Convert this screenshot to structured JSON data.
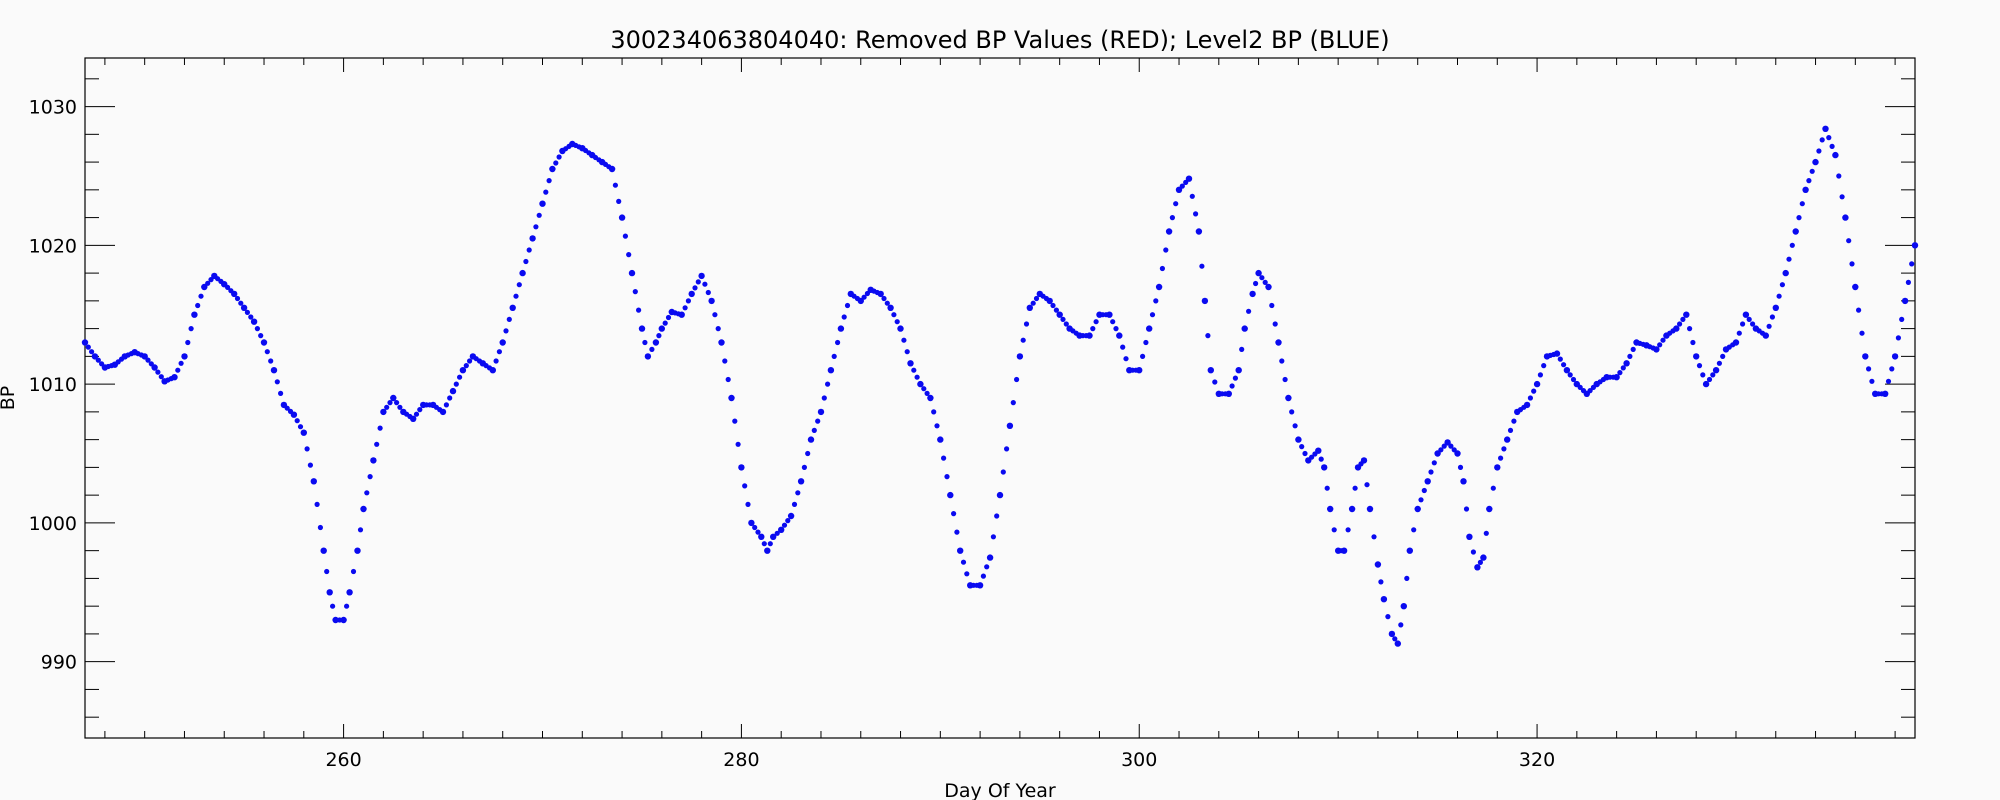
{
  "chart_data": {
    "type": "scatter",
    "title": "300234063804040: Removed BP Values (RED); Level2 BP (BLUE)",
    "xlabel": "Day Of Year",
    "ylabel": "BP",
    "xlim": [
      247,
      339
    ],
    "ylim": [
      984.5,
      1033.5
    ],
    "x_ticks": [
      260,
      280,
      300,
      320
    ],
    "y_ticks": [
      990,
      1000,
      1010,
      1020,
      1030
    ],
    "grid": false,
    "legend": "none",
    "series": [
      {
        "color": "#0a0af0",
        "points": [
          [
            247.0,
            1013.0
          ],
          [
            247.5,
            1012.0
          ],
          [
            248.0,
            1011.2
          ],
          [
            248.5,
            1011.4
          ],
          [
            249.0,
            1012.0
          ],
          [
            249.5,
            1012.3
          ],
          [
            250.0,
            1012.0
          ],
          [
            250.5,
            1011.2
          ],
          [
            251.0,
            1010.2
          ],
          [
            251.5,
            1010.5
          ],
          [
            252.0,
            1012.0
          ],
          [
            252.5,
            1015.0
          ],
          [
            253.0,
            1017.0
          ],
          [
            253.5,
            1017.8
          ],
          [
            254.0,
            1017.2
          ],
          [
            254.5,
            1016.5
          ],
          [
            255.0,
            1015.5
          ],
          [
            255.5,
            1014.5
          ],
          [
            256.0,
            1013.0
          ],
          [
            256.5,
            1011.0
          ],
          [
            257.0,
            1008.5
          ],
          [
            257.5,
            1007.8
          ],
          [
            258.0,
            1006.5
          ],
          [
            258.5,
            1003.0
          ],
          [
            259.0,
            998.0
          ],
          [
            259.3,
            995.0
          ],
          [
            259.6,
            993.0
          ],
          [
            260.0,
            993.0
          ],
          [
            260.3,
            995.0
          ],
          [
            260.7,
            998.0
          ],
          [
            261.0,
            1001.0
          ],
          [
            261.5,
            1004.5
          ],
          [
            262.0,
            1008.0
          ],
          [
            262.5,
            1009.0
          ],
          [
            263.0,
            1008.0
          ],
          [
            263.5,
            1007.5
          ],
          [
            264.0,
            1008.5
          ],
          [
            264.5,
            1008.5
          ],
          [
            265.0,
            1008.0
          ],
          [
            265.5,
            1009.5
          ],
          [
            266.0,
            1011.0
          ],
          [
            266.5,
            1012.0
          ],
          [
            267.0,
            1011.5
          ],
          [
            267.5,
            1011.0
          ],
          [
            268.0,
            1013.0
          ],
          [
            268.5,
            1015.5
          ],
          [
            269.0,
            1018.0
          ],
          [
            269.5,
            1020.5
          ],
          [
            270.0,
            1023.0
          ],
          [
            270.5,
            1025.5
          ],
          [
            271.0,
            1026.8
          ],
          [
            271.5,
            1027.3
          ],
          [
            272.0,
            1027.0
          ],
          [
            272.5,
            1026.5
          ],
          [
            273.0,
            1026.0
          ],
          [
            273.5,
            1025.5
          ],
          [
            274.0,
            1022.0
          ],
          [
            274.5,
            1018.0
          ],
          [
            275.0,
            1014.0
          ],
          [
            275.3,
            1012.0
          ],
          [
            275.7,
            1013.0
          ],
          [
            276.0,
            1014.0
          ],
          [
            276.5,
            1015.2
          ],
          [
            277.0,
            1015.0
          ],
          [
            277.5,
            1016.5
          ],
          [
            278.0,
            1017.8
          ],
          [
            278.5,
            1016.0
          ],
          [
            279.0,
            1013.0
          ],
          [
            279.5,
            1009.0
          ],
          [
            280.0,
            1004.0
          ],
          [
            280.5,
            1000.0
          ],
          [
            281.0,
            999.0
          ],
          [
            281.3,
            998.0
          ],
          [
            281.6,
            999.0
          ],
          [
            282.0,
            999.5
          ],
          [
            282.5,
            1000.5
          ],
          [
            283.0,
            1003.0
          ],
          [
            283.5,
            1006.0
          ],
          [
            284.0,
            1008.0
          ],
          [
            284.5,
            1011.0
          ],
          [
            285.0,
            1014.0
          ],
          [
            285.5,
            1016.5
          ],
          [
            286.0,
            1016.0
          ],
          [
            286.5,
            1016.8
          ],
          [
            287.0,
            1016.5
          ],
          [
            287.5,
            1015.5
          ],
          [
            288.0,
            1014.0
          ],
          [
            288.5,
            1011.5
          ],
          [
            289.0,
            1010.0
          ],
          [
            289.5,
            1009.0
          ],
          [
            290.0,
            1006.0
          ],
          [
            290.5,
            1002.0
          ],
          [
            291.0,
            998.0
          ],
          [
            291.5,
            995.5
          ],
          [
            292.0,
            995.5
          ],
          [
            292.5,
            997.5
          ],
          [
            293.0,
            1002.0
          ],
          [
            293.5,
            1007.0
          ],
          [
            294.0,
            1012.0
          ],
          [
            294.5,
            1015.5
          ],
          [
            295.0,
            1016.5
          ],
          [
            295.5,
            1016.0
          ],
          [
            296.0,
            1015.0
          ],
          [
            296.5,
            1014.0
          ],
          [
            297.0,
            1013.5
          ],
          [
            297.5,
            1013.5
          ],
          [
            298.0,
            1015.0
          ],
          [
            298.5,
            1015.0
          ],
          [
            299.0,
            1013.5
          ],
          [
            299.5,
            1011.0
          ],
          [
            300.0,
            1011.0
          ],
          [
            300.5,
            1014.0
          ],
          [
            301.0,
            1017.0
          ],
          [
            301.5,
            1021.0
          ],
          [
            302.0,
            1024.0
          ],
          [
            302.5,
            1024.8
          ],
          [
            303.0,
            1021.0
          ],
          [
            303.3,
            1016.0
          ],
          [
            303.6,
            1011.0
          ],
          [
            304.0,
            1009.3
          ],
          [
            304.5,
            1009.3
          ],
          [
            305.0,
            1011.0
          ],
          [
            305.3,
            1014.0
          ],
          [
            305.7,
            1016.5
          ],
          [
            306.0,
            1018.0
          ],
          [
            306.5,
            1017.0
          ],
          [
            307.0,
            1013.0
          ],
          [
            307.5,
            1009.0
          ],
          [
            308.0,
            1006.0
          ],
          [
            308.5,
            1004.5
          ],
          [
            309.0,
            1005.2
          ],
          [
            309.3,
            1004.0
          ],
          [
            309.6,
            1001.0
          ],
          [
            310.0,
            998.0
          ],
          [
            310.3,
            998.0
          ],
          [
            310.7,
            1001.0
          ],
          [
            311.0,
            1004.0
          ],
          [
            311.3,
            1004.5
          ],
          [
            311.6,
            1001.0
          ],
          [
            312.0,
            997.0
          ],
          [
            312.3,
            994.5
          ],
          [
            312.7,
            992.0
          ],
          [
            313.0,
            991.3
          ],
          [
            313.3,
            994.0
          ],
          [
            313.6,
            998.0
          ],
          [
            314.0,
            1001.0
          ],
          [
            314.5,
            1003.0
          ],
          [
            315.0,
            1005.0
          ],
          [
            315.5,
            1005.8
          ],
          [
            316.0,
            1005.0
          ],
          [
            316.3,
            1003.0
          ],
          [
            316.6,
            999.0
          ],
          [
            317.0,
            996.8
          ],
          [
            317.3,
            997.5
          ],
          [
            317.6,
            1001.0
          ],
          [
            318.0,
            1004.0
          ],
          [
            318.5,
            1006.0
          ],
          [
            319.0,
            1008.0
          ],
          [
            319.5,
            1008.5
          ],
          [
            320.0,
            1010.0
          ],
          [
            320.5,
            1012.0
          ],
          [
            321.0,
            1012.2
          ],
          [
            321.5,
            1011.0
          ],
          [
            322.0,
            1010.0
          ],
          [
            322.5,
            1009.3
          ],
          [
            323.0,
            1010.0
          ],
          [
            323.5,
            1010.5
          ],
          [
            324.0,
            1010.5
          ],
          [
            324.5,
            1011.5
          ],
          [
            325.0,
            1013.0
          ],
          [
            325.5,
            1012.8
          ],
          [
            326.0,
            1012.5
          ],
          [
            326.5,
            1013.5
          ],
          [
            327.0,
            1014.0
          ],
          [
            327.5,
            1015.0
          ],
          [
            328.0,
            1012.0
          ],
          [
            328.5,
            1010.0
          ],
          [
            329.0,
            1011.0
          ],
          [
            329.5,
            1012.5
          ],
          [
            330.0,
            1013.0
          ],
          [
            330.5,
            1015.0
          ],
          [
            331.0,
            1014.0
          ],
          [
            331.5,
            1013.5
          ],
          [
            332.0,
            1015.5
          ],
          [
            332.5,
            1018.0
          ],
          [
            333.0,
            1021.0
          ],
          [
            333.5,
            1024.0
          ],
          [
            334.0,
            1026.0
          ],
          [
            334.5,
            1028.4
          ],
          [
            335.0,
            1026.5
          ],
          [
            335.5,
            1022.0
          ],
          [
            336.0,
            1017.0
          ],
          [
            336.5,
            1012.0
          ],
          [
            337.0,
            1009.3
          ],
          [
            337.5,
            1009.3
          ],
          [
            338.0,
            1012.0
          ],
          [
            338.5,
            1016.0
          ],
          [
            339.0,
            1020.0
          ]
        ]
      }
    ]
  }
}
